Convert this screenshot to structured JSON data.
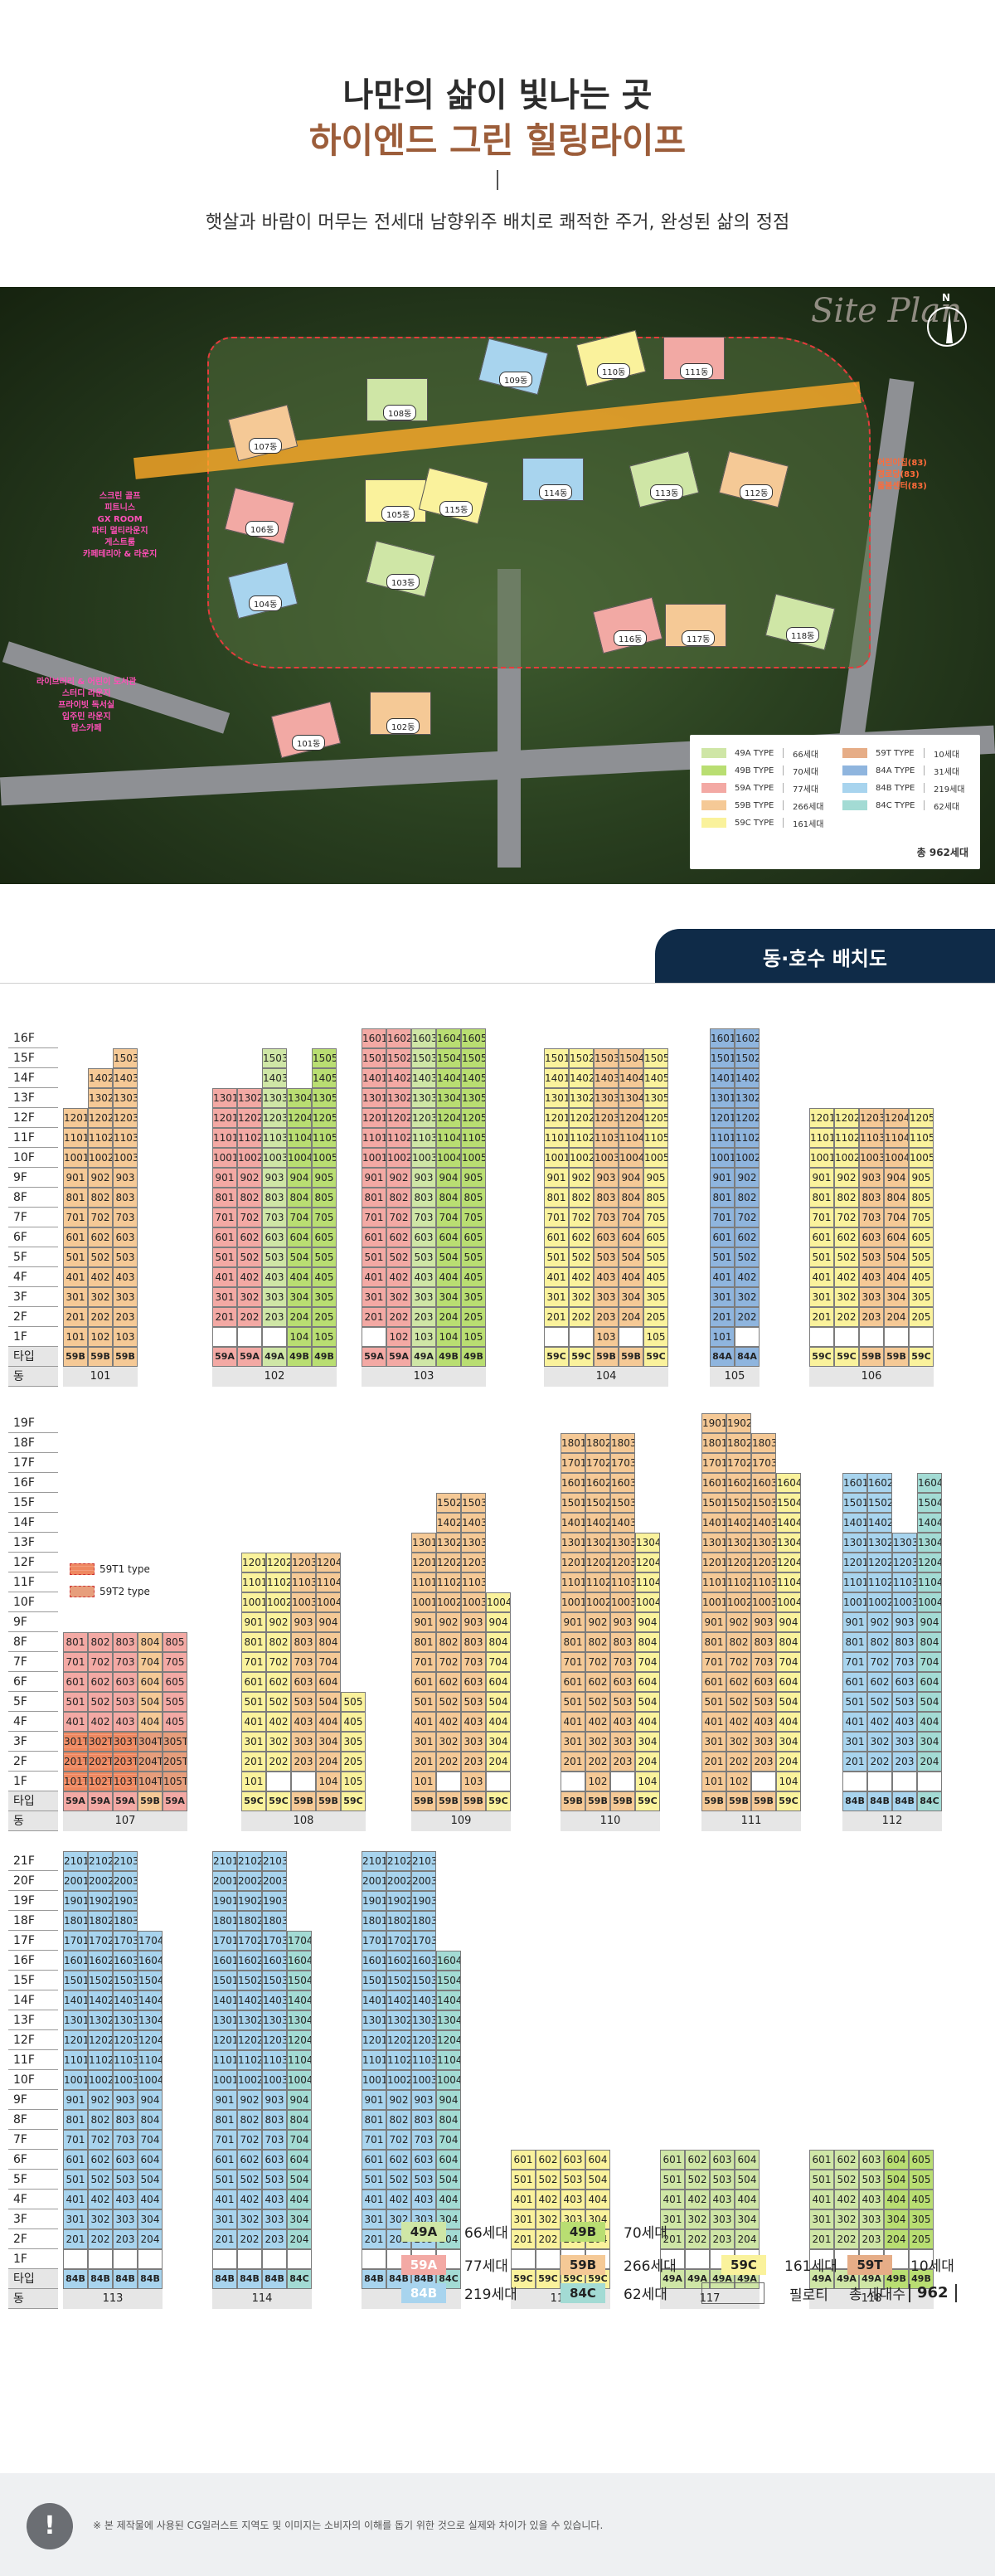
{
  "header": {
    "title1": "나만의 삶이 빛나는 곳",
    "title2": "하이엔드 그린 힐링라이프",
    "subtitle": "햇살과 바람이 머무는 전세대 남향위주 배치로 쾌적한 주거, 완성된 삶의 정점"
  },
  "siteplan": {
    "script_title": "Site Plan",
    "compass_label": "N",
    "dongs": [
      "101동",
      "102동",
      "103동",
      "104동",
      "105동",
      "106동",
      "107동",
      "108동",
      "109동",
      "110동",
      "111동",
      "112동",
      "113동",
      "114동",
      "115동",
      "116동",
      "117동",
      "118동"
    ],
    "callout_left_top": [
      "스크린 골프",
      "피트니스",
      "GX ROOM",
      "파티 멀티라운지",
      "게스트룸",
      "카페테리아 & 라운지"
    ],
    "callout_left_bottom": [
      "라이브러리 & 어린이 도서관",
      "스터디 라운지",
      "프라이빗 독서실",
      "입주민 라운지",
      "맘스카페"
    ],
    "callout_right": [
      "어린이집(83)",
      "경로당(83)",
      "돌봄센터(83)"
    ],
    "legend": [
      {
        "type": "49A TYPE",
        "count": "66세대",
        "color": "#cfe6a6"
      },
      {
        "type": "49B TYPE",
        "count": "70세대",
        "color": "#b9de72"
      },
      {
        "type": "59A TYPE",
        "count": "77세대",
        "color": "#f3a9a4"
      },
      {
        "type": "59B TYPE",
        "count": "266세대",
        "color": "#f5c996"
      },
      {
        "type": "59C TYPE",
        "count": "161세대",
        "color": "#faf29c"
      },
      {
        "type": "59T TYPE",
        "count": "10세대",
        "color": "#e6ad87"
      },
      {
        "type": "84A TYPE",
        "count": "31세대",
        "color": "#8fb5de"
      },
      {
        "type": "84B TYPE",
        "count": "219세대",
        "color": "#a8d4ee"
      },
      {
        "type": "84C TYPE",
        "count": "62세대",
        "color": "#a3dbd4"
      }
    ],
    "legend_total": "총 962세대"
  },
  "section_title": "동·호수 배치도",
  "type_row_label": "타입",
  "dong_row_label": "동",
  "pilotis_label": "필로티",
  "note_59T1": "59T1 type",
  "note_59T2": "59T2 type",
  "groups": [
    {
      "top_floor": 16,
      "bottom_floor": 1,
      "dongs": [
        {
          "name": "101",
          "types": [
            "59B",
            "59B",
            "59B"
          ],
          "hts": [
            12,
            14,
            15
          ],
          "pil": []
        },
        {
          "name": "102",
          "types": [
            "59A",
            "59A",
            "49A",
            "49B",
            "49B"
          ],
          "hts": [
            13,
            13,
            15,
            13,
            15
          ],
          "pil": [
            0,
            1,
            2
          ]
        },
        {
          "name": "103",
          "types": [
            "59A",
            "59A",
            "49A",
            "49B",
            "49B"
          ],
          "hts": [
            16,
            16,
            16,
            16,
            16
          ],
          "pil": [
            0
          ]
        },
        {
          "name": "104",
          "types": [
            "59C",
            "59C",
            "59B",
            "59B",
            "59C"
          ],
          "hts": [
            15,
            15,
            15,
            15,
            15
          ],
          "pil": [
            0,
            1,
            3
          ]
        },
        {
          "name": "105",
          "types": [
            "84A",
            "84A"
          ],
          "hts": [
            16,
            16
          ],
          "pil": [
            1
          ]
        },
        {
          "name": "106",
          "types": [
            "59C",
            "59C",
            "59B",
            "59B",
            "59C"
          ],
          "hts": [
            12,
            12,
            12,
            12,
            12
          ],
          "pil": [
            0,
            1,
            2,
            3,
            4
          ]
        }
      ]
    },
    {
      "top_floor": 19,
      "bottom_floor": 1,
      "dongs": [
        {
          "name": "107",
          "types": [
            "59A",
            "59A",
            "59A",
            "59B",
            "59A"
          ],
          "hts": [
            8,
            8,
            8,
            8,
            8
          ],
          "pil": []
        },
        {
          "name": "108",
          "types": [
            "59C",
            "59C",
            "59B",
            "59B",
            "59C"
          ],
          "hts": [
            12,
            12,
            12,
            12,
            5
          ],
          "pil": [
            1,
            2
          ]
        },
        {
          "name": "109",
          "types": [
            "59B",
            "59B",
            "59B",
            "59C"
          ],
          "hts": [
            13,
            15,
            15,
            10
          ],
          "pil": [
            1,
            3
          ]
        },
        {
          "name": "110",
          "types": [
            "59B",
            "59B",
            "59B",
            "59C"
          ],
          "hts": [
            18,
            18,
            18,
            13
          ],
          "pil": [
            0,
            2
          ]
        },
        {
          "name": "111",
          "types": [
            "59B",
            "59B",
            "59B",
            "59C"
          ],
          "hts": [
            19,
            19,
            18,
            16
          ],
          "pil": [
            2
          ]
        },
        {
          "name": "112",
          "types": [
            "84B",
            "84B",
            "84B",
            "84C"
          ],
          "hts": [
            16,
            16,
            13,
            16
          ],
          "pil": [
            0,
            1,
            2,
            3
          ]
        }
      ]
    },
    {
      "top_floor": 21,
      "bottom_floor": 1,
      "dongs": [
        {
          "name": "113",
          "types": [
            "84B",
            "84B",
            "84B",
            "84B"
          ],
          "hts": [
            21,
            21,
            21,
            17
          ],
          "pil": [
            0,
            1,
            2,
            3
          ]
        },
        {
          "name": "114",
          "types": [
            "84B",
            "84B",
            "84B",
            "84C"
          ],
          "hts": [
            21,
            21,
            21,
            17
          ],
          "pil": [
            0,
            1,
            2,
            3
          ]
        },
        {
          "name": "115",
          "types": [
            "84B",
            "84B",
            "84B",
            "84C"
          ],
          "hts": [
            21,
            21,
            21,
            16
          ],
          "pil": [
            0,
            1,
            2,
            3
          ]
        },
        {
          "name": "116",
          "types": [
            "59C",
            "59C",
            "59C",
            "59C"
          ],
          "hts": [
            6,
            6,
            6,
            6
          ],
          "pil": [
            0,
            1,
            2,
            3
          ]
        },
        {
          "name": "117",
          "types": [
            "49A",
            "49A",
            "49A",
            "49A"
          ],
          "hts": [
            6,
            6,
            6,
            6
          ],
          "pil": [
            0,
            1,
            2,
            3
          ]
        },
        {
          "name": "118",
          "types": [
            "49A",
            "49A",
            "49A",
            "49B",
            "49B"
          ],
          "hts": [
            6,
            6,
            6,
            6,
            6
          ],
          "pil": [
            0,
            1,
            2,
            3,
            4
          ]
        }
      ]
    }
  ],
  "bottom_legend": [
    {
      "type": "49A",
      "count": "66세대"
    },
    {
      "type": "49B",
      "count": "70세대"
    },
    {
      "type": "59A",
      "count": "77세대"
    },
    {
      "type": "59B",
      "count": "266세대"
    },
    {
      "type": "59C",
      "count": "161세대"
    },
    {
      "type": "59T",
      "count": "10세대"
    },
    {
      "type": "84B",
      "count": "219세대"
    },
    {
      "type": "84C",
      "count": "62세대"
    }
  ],
  "total_label": "총 세대수",
  "total_value": "962",
  "footer_note": "※ 본 제작물에 사용된 CG일러스트 지역도 및 이미지는 소비자의 이해를 돕기 위한 것으로 실제와 차이가 있을 수 있습니다.",
  "footer_icon": "exclamation-icon"
}
